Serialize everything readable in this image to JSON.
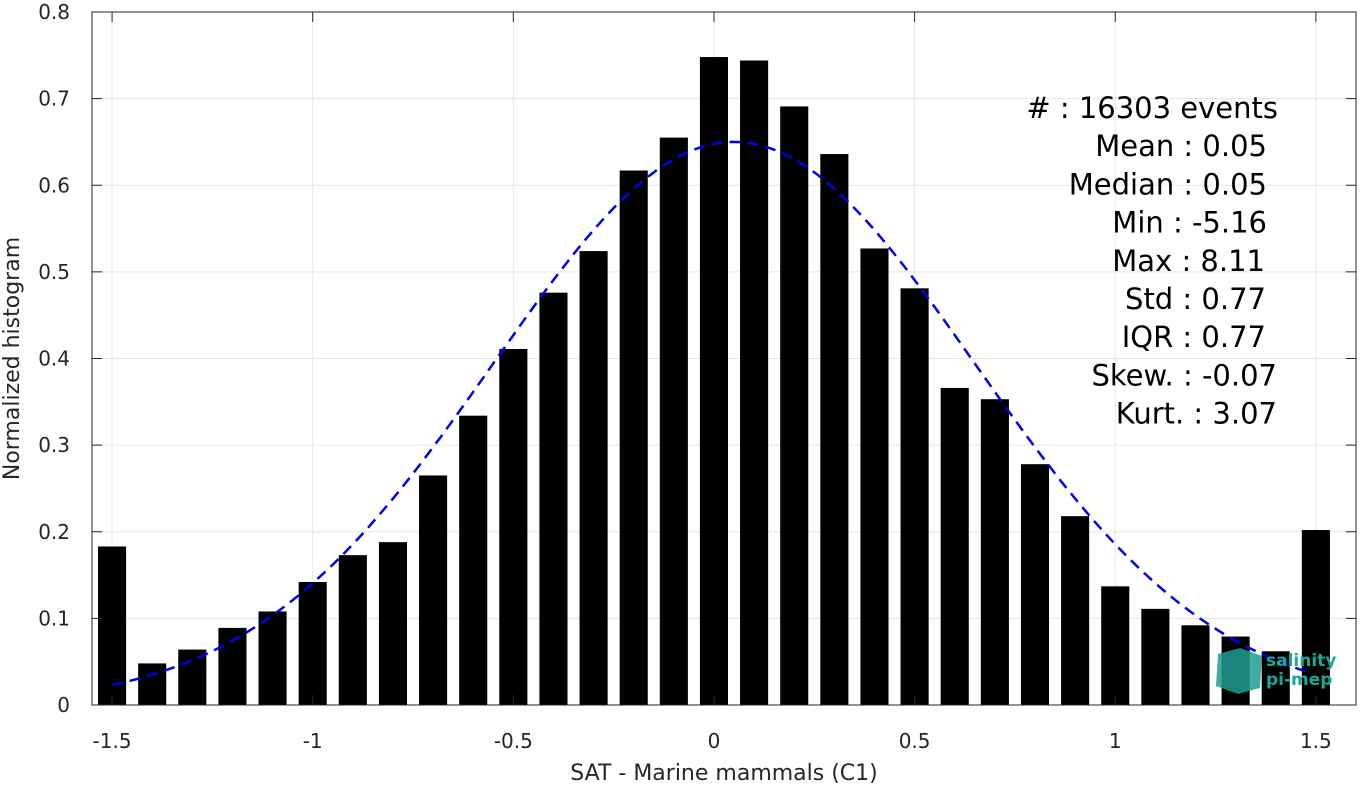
{
  "chart_data": {
    "type": "bar",
    "xlabel": "SAT - Marine mammals (C1)",
    "ylabel": "Normalized histogram",
    "xlim": [
      -1.55,
      1.6
    ],
    "ylim": [
      0,
      0.8
    ],
    "xticks": [
      -1.5,
      -1,
      -0.5,
      0,
      0.5,
      1,
      1.5
    ],
    "xtick_labels": [
      "-1.5",
      "-1",
      "-0.5",
      "0",
      "0.5",
      "1",
      "1.5"
    ],
    "yticks": [
      0,
      0.1,
      0.2,
      0.3,
      0.4,
      0.5,
      0.6,
      0.7,
      0.8
    ],
    "ytick_labels": [
      "0",
      "0.1",
      "0.2",
      "0.3",
      "0.4",
      "0.5",
      "0.6",
      "0.7",
      "0.8"
    ],
    "grid": true,
    "bar_width": 0.07,
    "bar_color": "#000000",
    "x": [
      -1.5,
      -1.4,
      -1.3,
      -1.2,
      -1.1,
      -1.0,
      -0.9,
      -0.8,
      -0.7,
      -0.6,
      -0.5,
      -0.4,
      -0.3,
      -0.2,
      -0.1,
      0.0,
      0.1,
      0.2,
      0.3,
      0.4,
      0.5,
      0.6,
      0.7,
      0.8,
      0.9,
      1.0,
      1.1,
      1.2,
      1.3,
      1.4,
      1.5
    ],
    "values": [
      0.183,
      0.048,
      0.064,
      0.089,
      0.108,
      0.142,
      0.173,
      0.188,
      0.265,
      0.334,
      0.411,
      0.476,
      0.524,
      0.617,
      0.655,
      0.748,
      0.744,
      0.691,
      0.636,
      0.527,
      0.481,
      0.366,
      0.353,
      0.278,
      0.218,
      0.137,
      0.111,
      0.092,
      0.079,
      0.062,
      0.202
    ],
    "fit_curve": {
      "type": "gaussian",
      "style": "dashed",
      "color": "#0000ee",
      "mean": 0.05,
      "std": 0.6,
      "peak": 0.65,
      "x_range": [
        -1.5,
        1.48
      ]
    },
    "stats": [
      {
        "label": "#  : 16303 events"
      },
      {
        "label": "Mean : 0.05"
      },
      {
        "label": "Median : 0.05"
      },
      {
        "label": "Min : -5.16"
      },
      {
        "label": "Max : 8.11"
      },
      {
        "label": "Std : 0.77"
      },
      {
        "label": "IQR : 0.77"
      },
      {
        "label": "Skew. : -0.07"
      },
      {
        "label": "Kurt. : 3.07"
      }
    ],
    "stats_placement": "top-right"
  },
  "logo": {
    "line1": "salinity",
    "line2": "pi-mep",
    "color": "#1aa89a"
  }
}
